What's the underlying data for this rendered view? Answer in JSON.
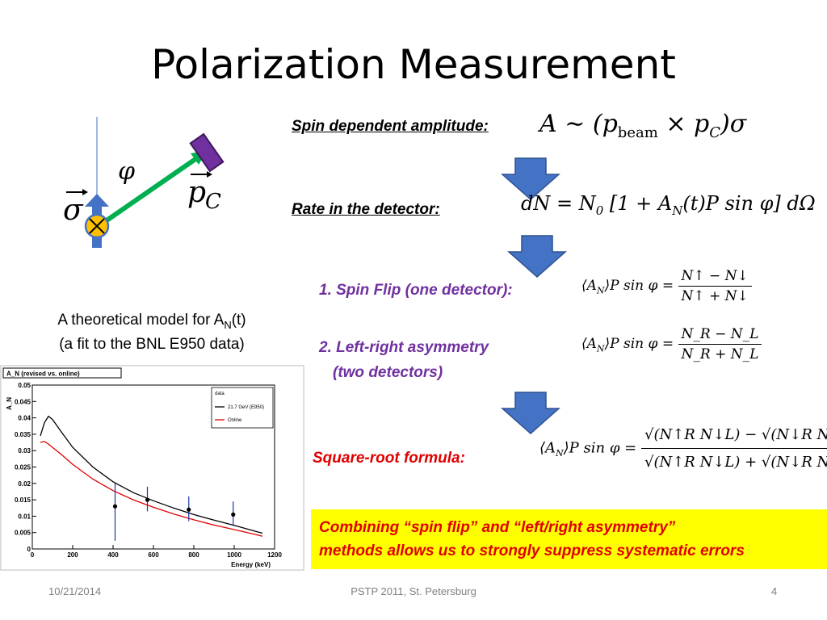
{
  "slide": {
    "title": "Polarization Measurement",
    "footer_date": "10/21/2014",
    "footer_center": "PSTP 2011, St. Petersburg",
    "footer_page": "4"
  },
  "diagram": {
    "phi_symbol": "φ",
    "sigma_symbol": "σ",
    "pc_symbol": "p",
    "pc_subscript": "C",
    "colors": {
      "arrow": "#00b050",
      "detector": "#7030a0",
      "spin_arrow": "#4472c4",
      "nucleus": "#ffc000"
    }
  },
  "labels": {
    "spin_amplitude": "Spin dependent amplitude:",
    "rate": "Rate in the detector:",
    "spin_flip": "1. Spin Flip (one detector):",
    "lr_line1": "2. Left-right asymmetry",
    "lr_line2": "(two detectors)",
    "sqrt_formula": "Square-root  formula:"
  },
  "formulas": {
    "amplitude": {
      "lhs": "A ∼ (",
      "p": "p",
      "beam": "beam",
      "times": " × ",
      "pc": "p",
      "c": "C",
      "rhs": ")σ"
    },
    "rate": {
      "a": "dN = N",
      "a0": "0",
      "b": " [1 + A",
      "bN": "N",
      "c": "(t)P sin φ] dΩ"
    },
    "lhs": {
      "a": "⟨A",
      "sub": "N",
      "b": "⟩P sin φ ="
    },
    "spin_flip": {
      "num": "N↑ − N↓",
      "den": "N↑ + N↓"
    },
    "lr": {
      "num": "N_R − N_L",
      "den": "N_R + N_L"
    },
    "sqrt": {
      "num": "√(N↑R N↓L) − √(N↓R N↑L)",
      "den": "√(N↑R N↓L) + √(N↓R N↑L)"
    }
  },
  "caption": {
    "line1_a": "A theoretical model for A",
    "line1_sub": "N",
    "line1_b": "(t)",
    "line2": "(a fit to the BNL E950 data)"
  },
  "highlight": {
    "line1": "Combining “spin flip” and “left/right asymmetry”",
    "line2": "methods allows us to strongly suppress systematic errors"
  },
  "chart_data": {
    "type": "line",
    "title": "A_N (revised vs. online)",
    "xlabel": "Energy (keV)",
    "ylabel": "A_N",
    "xlim": [
      0,
      1200
    ],
    "ylim": [
      0,
      0.05
    ],
    "xticks": [
      0,
      200,
      400,
      600,
      800,
      1000,
      1200
    ],
    "yticks": [
      0,
      0.005,
      0.01,
      0.015,
      0.02,
      0.025,
      0.03,
      0.035,
      0.04,
      0.045,
      0.05
    ],
    "legend": {
      "header": "data",
      "placement": "top-right"
    },
    "series": [
      {
        "name": "21.7 GeV (E950)",
        "color": "#000000",
        "x": [
          40,
          60,
          80,
          100,
          150,
          200,
          300,
          400,
          500,
          600,
          700,
          800,
          900,
          1000,
          1100,
          1140
        ],
        "y": [
          0.0345,
          0.0385,
          0.0405,
          0.0395,
          0.0352,
          0.031,
          0.025,
          0.0205,
          0.0172,
          0.0147,
          0.0125,
          0.0105,
          0.0088,
          0.0072,
          0.0055,
          0.0048
        ]
      },
      {
        "name": "Online",
        "color": "#e00000",
        "x": [
          40,
          60,
          80,
          100,
          150,
          200,
          300,
          400,
          500,
          600,
          700,
          800,
          900,
          1000,
          1100,
          1140
        ],
        "y": [
          0.0325,
          0.0328,
          0.032,
          0.031,
          0.0285,
          0.0258,
          0.0213,
          0.0178,
          0.015,
          0.0127,
          0.0107,
          0.0089,
          0.0073,
          0.0059,
          0.0045,
          0.0039
        ]
      },
      {
        "name": "",
        "color": "#000000",
        "markers": true,
        "x": [
          410,
          570,
          775,
          995
        ],
        "y": [
          0.013,
          0.015,
          0.012,
          0.0105
        ],
        "err_lo": [
          0.0105,
          0.0035,
          0.0035,
          0.0035
        ],
        "err_hi": [
          0.007,
          0.004,
          0.004,
          0.004
        ]
      }
    ]
  }
}
